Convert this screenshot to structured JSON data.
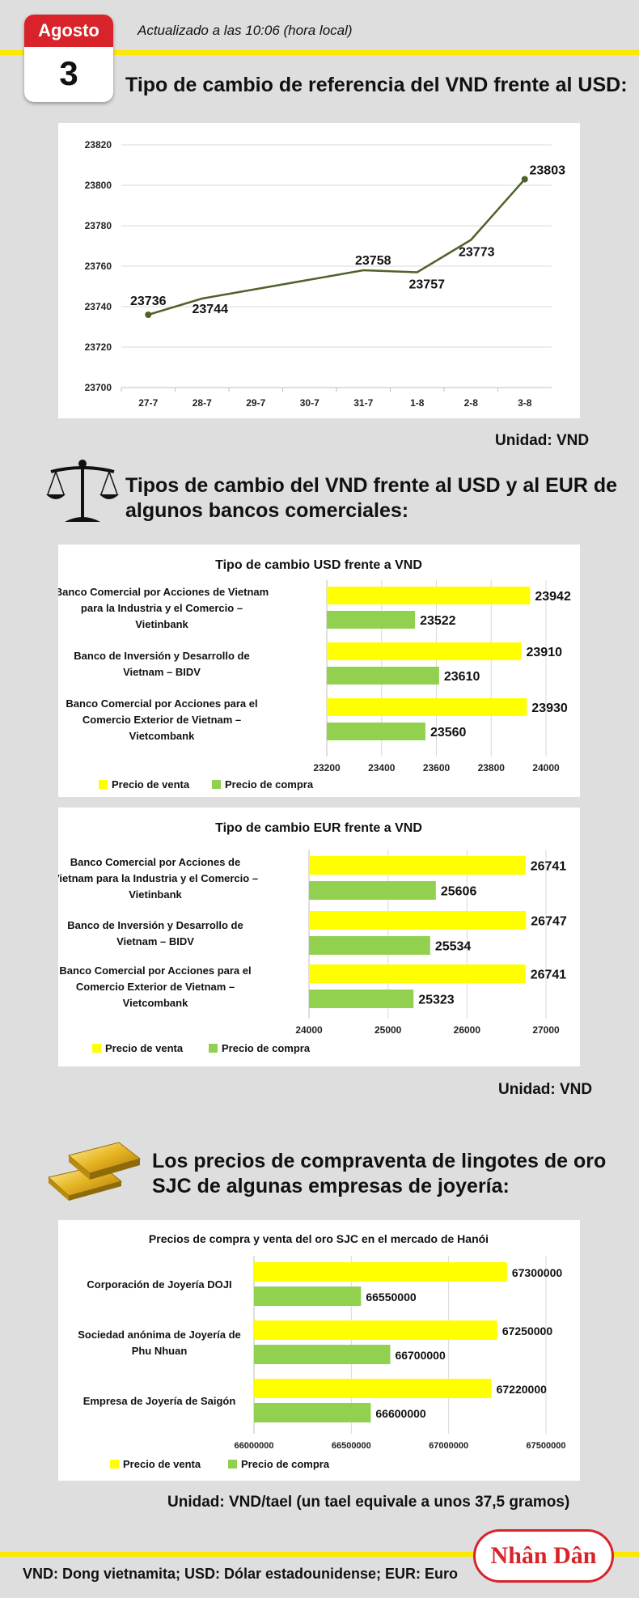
{
  "header": {
    "month": "Agosto",
    "day": "3",
    "updated": "Actualizado a las 10:06 (hora local)"
  },
  "sections": {
    "usd_title": "Tipo de cambio de referencia del VND frente al USD:",
    "banks_title_line1": "Tipos de cambio del VND frente al USD y al EUR de",
    "banks_title_line2": "algunos bancos comerciales:",
    "gold_title_line1": "Los precios de compraventa de lingotes de oro",
    "gold_title_line2": "SJC de algunas empresas de joyería:"
  },
  "units": {
    "u1": "Unidad: VND",
    "u2": "Unidad: VND",
    "u3": "Unidad: VND/tael (un tael equivale a unos 37,5 gramos)"
  },
  "footer": {
    "note": "VND: Dong vietnamita; USD: Dólar estadounidense; EUR: Euro",
    "logo": "Nhân Dân"
  },
  "colors": {
    "sell": "#ffff00",
    "buy": "#92d050",
    "line": "#4f6228",
    "accent": "#d8232a",
    "band": "#fde800"
  },
  "chart_data": [
    {
      "type": "line",
      "x": [
        "27-7",
        "28-7",
        "29-7",
        "30-7",
        "31-7",
        "1-8",
        "2-8",
        "3-8"
      ],
      "values": [
        23736,
        23744,
        null,
        null,
        23758,
        23757,
        23773,
        23803
      ],
      "point_labels": [
        "23736",
        "23744",
        "",
        "",
        "23758",
        "23757",
        "23773",
        "23803"
      ],
      "ylim": [
        23700,
        23820
      ],
      "yticks": [
        23820,
        23800,
        23780,
        23760,
        23740,
        23720,
        23700
      ],
      "grid": true
    },
    {
      "type": "bar",
      "orientation": "horizontal",
      "title": "Tipo de cambio USD frente a VND",
      "categories": [
        [
          "Banco Comercial por Acciones de Vietnam",
          "para la Industria y el Comercio –",
          "Vietinbank"
        ],
        [
          "Banco de Inversión y Desarrollo de",
          "Vietnam – BIDV"
        ],
        [
          "Banco Comercial por Acciones para el",
          "Comercio Exterior de Vietnam –",
          "Vietcombank"
        ]
      ],
      "series": [
        {
          "name": "Precio de venta",
          "values": [
            23942,
            23910,
            23930
          ]
        },
        {
          "name": "Precio de compra",
          "values": [
            23522,
            23610,
            23560
          ]
        }
      ],
      "xlim": [
        23200,
        24000
      ],
      "xticks": [
        "23200",
        "23400",
        "23600",
        "23800",
        "24000"
      ],
      "legend": "bottom-left"
    },
    {
      "type": "bar",
      "orientation": "horizontal",
      "title": "Tipo de cambio EUR frente a VND",
      "categories": [
        [
          "Banco Comercial por Acciones de",
          "Vietnam para la Industria y el Comercio –",
          "Vietinbank"
        ],
        [
          "Banco de Inversión y Desarrollo de",
          "Vietnam – BIDV"
        ],
        [
          "Banco Comercial por Acciones para el",
          "Comercio Exterior de Vietnam –",
          "Vietcombank"
        ]
      ],
      "series": [
        {
          "name": "Precio de venta",
          "values": [
            26741,
            26747,
            26741
          ]
        },
        {
          "name": "Precio de compra",
          "values": [
            25606,
            25534,
            25323
          ]
        }
      ],
      "xlim": [
        24000,
        27000
      ],
      "xticks": [
        "24000",
        "25000",
        "26000",
        "27000"
      ],
      "legend": "bottom-left"
    },
    {
      "type": "bar",
      "orientation": "horizontal",
      "title": "Precios de compra y venta del oro SJC en el mercado de Hanói",
      "categories": [
        [
          "Corporación de Joyería DOJI"
        ],
        [
          "Sociedad anónima de Joyería de",
          "Phu Nhuan"
        ],
        [
          "Empresa de Joyería de Saigón"
        ]
      ],
      "series": [
        {
          "name": "Precio de venta",
          "values": [
            67300000,
            67250000,
            67220000
          ]
        },
        {
          "name": "Precio de compra",
          "values": [
            66550000,
            66700000,
            66600000
          ]
        }
      ],
      "xlim": [
        66000000,
        67500000
      ],
      "xticks": [
        "66000000",
        "66500000",
        "67000000",
        "67500000"
      ],
      "legend": "bottom-left"
    }
  ]
}
